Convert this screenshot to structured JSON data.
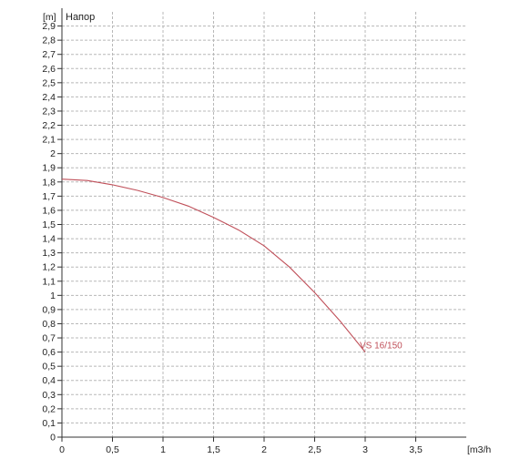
{
  "chart_data": {
    "type": "line",
    "title": "Напор",
    "ylabel": "[m]",
    "xlabel": "[m3/h",
    "xlim": [
      0,
      4
    ],
    "ylim": [
      0,
      3
    ],
    "x_ticks": [
      {
        "value": 0,
        "label": "0"
      },
      {
        "value": 0.5,
        "label": "0,5"
      },
      {
        "value": 1,
        "label": "1"
      },
      {
        "value": 1.5,
        "label": "1,5"
      },
      {
        "value": 2,
        "label": "2"
      },
      {
        "value": 2.5,
        "label": "2,5"
      },
      {
        "value": 3,
        "label": "3"
      },
      {
        "value": 3.5,
        "label": "3,5"
      }
    ],
    "y_ticks": [
      {
        "value": 0,
        "label": "0"
      },
      {
        "value": 0.1,
        "label": "0,1"
      },
      {
        "value": 0.2,
        "label": "0,2"
      },
      {
        "value": 0.3,
        "label": "0,3"
      },
      {
        "value": 0.4,
        "label": "0,4"
      },
      {
        "value": 0.5,
        "label": "0,5"
      },
      {
        "value": 0.6,
        "label": "0,6"
      },
      {
        "value": 0.7,
        "label": "0,7"
      },
      {
        "value": 0.8,
        "label": "0,8"
      },
      {
        "value": 0.9,
        "label": "0,9"
      },
      {
        "value": 1,
        "label": "1"
      },
      {
        "value": 1.1,
        "label": "1,1"
      },
      {
        "value": 1.2,
        "label": "1,2"
      },
      {
        "value": 1.3,
        "label": "1,3"
      },
      {
        "value": 1.4,
        "label": "1,4"
      },
      {
        "value": 1.5,
        "label": "1,5"
      },
      {
        "value": 1.6,
        "label": "1,6"
      },
      {
        "value": 1.7,
        "label": "1,7"
      },
      {
        "value": 1.8,
        "label": "1,8"
      },
      {
        "value": 1.9,
        "label": "1,9"
      },
      {
        "value": 2,
        "label": "2"
      },
      {
        "value": 2.1,
        "label": "2,1"
      },
      {
        "value": 2.2,
        "label": "2,2"
      },
      {
        "value": 2.3,
        "label": "2,3"
      },
      {
        "value": 2.4,
        "label": "2,4"
      },
      {
        "value": 2.5,
        "label": "2,5"
      },
      {
        "value": 2.6,
        "label": "2,6"
      },
      {
        "value": 2.7,
        "label": "2,7"
      },
      {
        "value": 2.8,
        "label": "2,8"
      },
      {
        "value": 2.9,
        "label": "2,9"
      }
    ],
    "grid": true,
    "series": [
      {
        "name": "VS 16/150",
        "color": "#c0505a",
        "x": [
          0,
          0.25,
          0.5,
          0.75,
          1.0,
          1.25,
          1.5,
          1.75,
          2.0,
          2.25,
          2.5,
          2.75,
          3.0
        ],
        "y": [
          1.82,
          1.81,
          1.78,
          1.74,
          1.69,
          1.63,
          1.55,
          1.46,
          1.35,
          1.2,
          1.02,
          0.82,
          0.6
        ]
      }
    ]
  }
}
